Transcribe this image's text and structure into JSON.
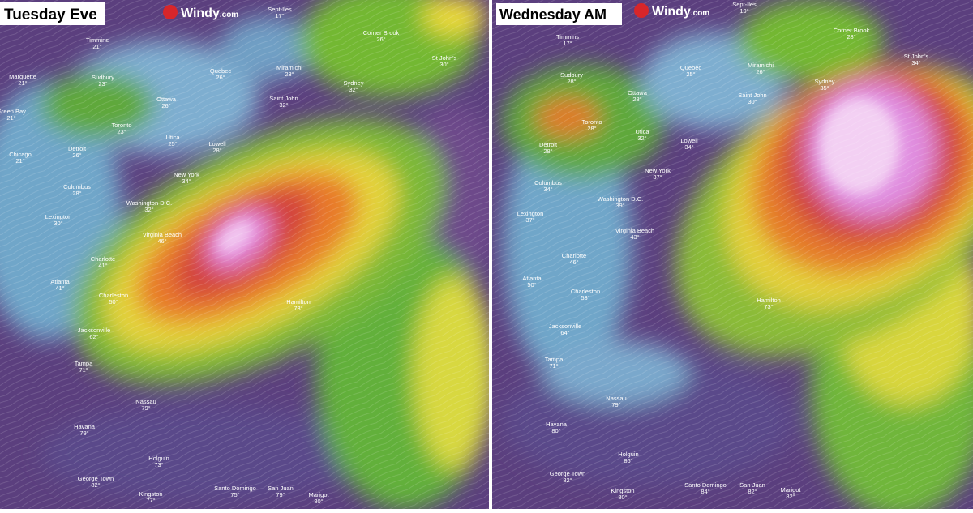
{
  "panels": [
    {
      "title": "Tuesday Eve",
      "brand": "Windy",
      "brand_suffix": ".com",
      "cities": [
        {
          "name": "Timmins",
          "temp": "21°"
        },
        {
          "name": "Marquette",
          "temp": "21°"
        },
        {
          "name": "Sudbury",
          "temp": "23°"
        },
        {
          "name": "Quebec",
          "temp": "26°"
        },
        {
          "name": "Miramichi",
          "temp": "23°"
        },
        {
          "name": "Sept-Iles",
          "temp": "17°"
        },
        {
          "name": "Corner Brook",
          "temp": "26°"
        },
        {
          "name": "St John's",
          "temp": "30°"
        },
        {
          "name": "Sydney",
          "temp": "32°"
        },
        {
          "name": "Ottawa",
          "temp": "26°"
        },
        {
          "name": "Saint John",
          "temp": "32°"
        },
        {
          "name": "Green Bay",
          "temp": "21°"
        },
        {
          "name": "Toronto",
          "temp": "23°"
        },
        {
          "name": "Utica",
          "temp": "25°"
        },
        {
          "name": "Lowell",
          "temp": "28°"
        },
        {
          "name": "Chicago",
          "temp": "21°"
        },
        {
          "name": "Detroit",
          "temp": "26°"
        },
        {
          "name": "New York",
          "temp": "34°"
        },
        {
          "name": "Columbus",
          "temp": "28°"
        },
        {
          "name": "Washington D.C.",
          "temp": "32°"
        },
        {
          "name": "Lexington",
          "temp": "30°"
        },
        {
          "name": "Virginia Beach",
          "temp": "46°"
        },
        {
          "name": "Charlotte",
          "temp": "41°"
        },
        {
          "name": "Atlanta",
          "temp": "41°"
        },
        {
          "name": "Charleston",
          "temp": "50°"
        },
        {
          "name": "Hamilton",
          "temp": "73°"
        },
        {
          "name": "Jacksonville",
          "temp": "62°"
        },
        {
          "name": "Tampa",
          "temp": "71°"
        },
        {
          "name": "Nassau",
          "temp": "79°"
        },
        {
          "name": "Havana",
          "temp": "79°"
        },
        {
          "name": "Holguin",
          "temp": "73°"
        },
        {
          "name": "George Town",
          "temp": "82°"
        },
        {
          "name": "Kingston",
          "temp": "77°"
        },
        {
          "name": "Santo Domingo",
          "temp": "75°"
        },
        {
          "name": "San Juan",
          "temp": "79°"
        },
        {
          "name": "Marigot",
          "temp": "80°"
        }
      ]
    },
    {
      "title": "Wednesday AM",
      "brand": "Windy",
      "brand_suffix": ".com",
      "cities": [
        {
          "name": "Timmins",
          "temp": "17°"
        },
        {
          "name": "Sept-Iles",
          "temp": "19°"
        },
        {
          "name": "Corner Brook",
          "temp": "28°"
        },
        {
          "name": "St John's",
          "temp": "34°"
        },
        {
          "name": "Quebec",
          "temp": "25°"
        },
        {
          "name": "Miramichi",
          "temp": "26°"
        },
        {
          "name": "Sudbury",
          "temp": "28°"
        },
        {
          "name": "Sydney",
          "temp": "35°"
        },
        {
          "name": "Ottawa",
          "temp": "28°"
        },
        {
          "name": "Saint John",
          "temp": "30°"
        },
        {
          "name": "Toronto",
          "temp": "28°"
        },
        {
          "name": "Utica",
          "temp": "32°"
        },
        {
          "name": "Lowell",
          "temp": "34°"
        },
        {
          "name": "Detroit",
          "temp": "28°"
        },
        {
          "name": "New York",
          "temp": "37°"
        },
        {
          "name": "Columbus",
          "temp": "34°"
        },
        {
          "name": "Washington D.C.",
          "temp": "39°"
        },
        {
          "name": "Lexington",
          "temp": "37°"
        },
        {
          "name": "Virginia Beach",
          "temp": "43°"
        },
        {
          "name": "Charlotte",
          "temp": "46°"
        },
        {
          "name": "Atlanta",
          "temp": "50°"
        },
        {
          "name": "Charleston",
          "temp": "53°"
        },
        {
          "name": "Hamilton",
          "temp": "73°"
        },
        {
          "name": "Jacksonville",
          "temp": "64°"
        },
        {
          "name": "Tampa",
          "temp": "71°"
        },
        {
          "name": "Nassau",
          "temp": "79°"
        },
        {
          "name": "Havana",
          "temp": "80°"
        },
        {
          "name": "Holguin",
          "temp": "86°"
        },
        {
          "name": "George Town",
          "temp": "82°"
        },
        {
          "name": "Kingston",
          "temp": "80°"
        },
        {
          "name": "Santo Domingo",
          "temp": "84°"
        },
        {
          "name": "San Juan",
          "temp": "82°"
        },
        {
          "name": "Marigot",
          "temp": "82°"
        }
      ]
    }
  ]
}
